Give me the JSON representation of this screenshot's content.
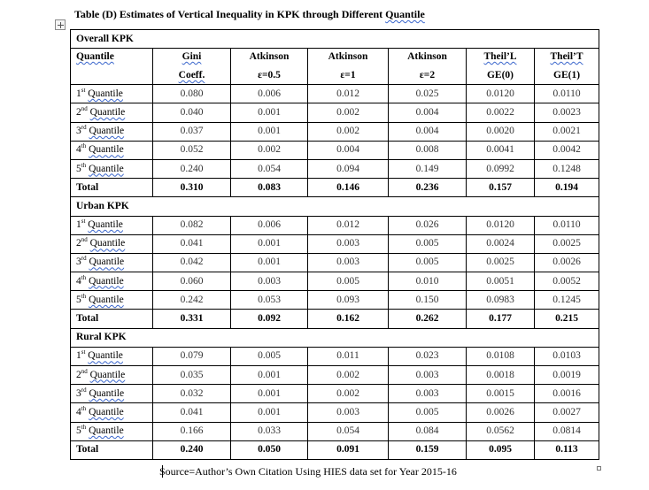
{
  "caption": {
    "prefix": "Table (D) Estimates of Vertical Inequality in KPK through Different ",
    "word": "Quantile"
  },
  "header": {
    "quantile": "Quantile",
    "columns": [
      {
        "l1": "Gini",
        "l2": "Coeff."
      },
      {
        "l1": "Atkinson",
        "l2": "ε=0.5"
      },
      {
        "l1": "Atkinson",
        "l2": "ε=1"
      },
      {
        "l1": "Atkinson",
        "l2": "ε=2"
      },
      {
        "l1": "Theil’L",
        "l2": "GE(0)"
      },
      {
        "l1": "Theil’T",
        "l2": "GE(1)"
      }
    ]
  },
  "sections": [
    {
      "title": "Overall KPK",
      "rows": [
        {
          "ordinal": "1",
          "suffix": "st",
          "word": "Quantile",
          "values": [
            "0.080",
            "0.006",
            "0.012",
            "0.025",
            "0.0120",
            "0.0110"
          ]
        },
        {
          "ordinal": "2",
          "suffix": "nd",
          "word": "Quantile",
          "values": [
            "0.040",
            "0.001",
            "0.002",
            "0.004",
            "0.0022",
            "0.0023"
          ]
        },
        {
          "ordinal": "3",
          "suffix": "rd",
          "word": "Quantile",
          "values": [
            "0.037",
            "0.001",
            "0.002",
            "0.004",
            "0.0020",
            "0.0021"
          ]
        },
        {
          "ordinal": "4",
          "suffix": "th",
          "word": "Quantile",
          "values": [
            "0.052",
            "0.002",
            "0.004",
            "0.008",
            "0.0041",
            "0.0042"
          ]
        },
        {
          "ordinal": "5",
          "suffix": "th",
          "word": "Quantile",
          "values": [
            "0.240",
            "0.054",
            "0.094",
            "0.149",
            "0.0992",
            "0.1248"
          ]
        }
      ],
      "total": {
        "label": "Total",
        "values": [
          "0.310",
          "0.083",
          "0.146",
          "0.236",
          "0.157",
          "0.194"
        ]
      }
    },
    {
      "title": "Urban KPK",
      "rows": [
        {
          "ordinal": "1",
          "suffix": "st",
          "word": "Quantile",
          "values": [
            "0.082",
            "0.006",
            "0.012",
            "0.026",
            "0.0120",
            "0.0110"
          ]
        },
        {
          "ordinal": "2",
          "suffix": "nd",
          "word": "Quantile",
          "values": [
            "0.041",
            "0.001",
            "0.003",
            "0.005",
            "0.0024",
            "0.0025"
          ]
        },
        {
          "ordinal": "3",
          "suffix": "rd",
          "word": "Quantile",
          "values": [
            "0.042",
            "0.001",
            "0.003",
            "0.005",
            "0.0025",
            "0.0026"
          ]
        },
        {
          "ordinal": "4",
          "suffix": "th",
          "word": "Quantile",
          "values": [
            "0.060",
            "0.003",
            "0.005",
            "0.010",
            "0.0051",
            "0.0052"
          ]
        },
        {
          "ordinal": "5",
          "suffix": "th",
          "word": "Quantile",
          "values": [
            "0.242",
            "0.053",
            "0.093",
            "0.150",
            "0.0983",
            "0.1245"
          ]
        }
      ],
      "total": {
        "label": "Total",
        "values": [
          "0.331",
          "0.092",
          "0.162",
          "0.262",
          "0.177",
          "0.215"
        ]
      }
    },
    {
      "title": "Rural KPK",
      "rows": [
        {
          "ordinal": "1",
          "suffix": "st",
          "word": "Quantile",
          "values": [
            "0.079",
            "0.005",
            "0.011",
            "0.023",
            "0.0108",
            "0.0103"
          ]
        },
        {
          "ordinal": "2",
          "suffix": "nd",
          "word": "Quantile",
          "values": [
            "0.035",
            "0.001",
            "0.002",
            "0.003",
            "0.0018",
            "0.0019"
          ]
        },
        {
          "ordinal": "3",
          "suffix": "rd",
          "word": "Quantile",
          "values": [
            "0.032",
            "0.001",
            "0.002",
            "0.003",
            "0.0015",
            "0.0016"
          ]
        },
        {
          "ordinal": "4",
          "suffix": "th",
          "word": "Quantile",
          "values": [
            "0.041",
            "0.001",
            "0.003",
            "0.005",
            "0.0026",
            "0.0027"
          ]
        },
        {
          "ordinal": "5",
          "suffix": "th",
          "word": "Quantile",
          "values": [
            "0.166",
            "0.033",
            "0.054",
            "0.084",
            "0.0562",
            "0.0814"
          ]
        }
      ],
      "total": {
        "label": "Total",
        "values": [
          "0.240",
          "0.050",
          "0.091",
          "0.159",
          "0.095",
          "0.113"
        ]
      }
    }
  ],
  "source": "Source=Author’s Own Citation Using HIES data set for Year 2015-16"
}
